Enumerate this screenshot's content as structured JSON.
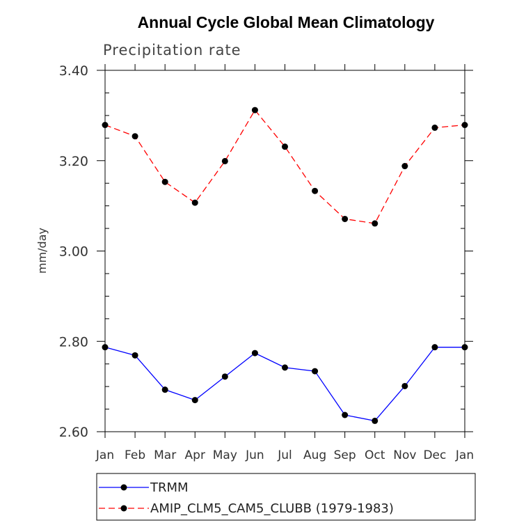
{
  "chart_data": {
    "type": "line",
    "title": "Annual Cycle Global Mean Climatology",
    "subtitle": "Precipitation rate",
    "ylabel": "mm/day",
    "xlabel": "",
    "ylim": [
      2.6,
      3.4
    ],
    "yticks": [
      "2.60",
      "2.80",
      "3.00",
      "3.20",
      "3.40"
    ],
    "yticks_values": [
      2.6,
      2.8,
      3.0,
      3.2,
      3.4
    ],
    "categories": [
      "Jan",
      "Feb",
      "Mar",
      "Apr",
      "May",
      "Jun",
      "Jul",
      "Aug",
      "Sep",
      "Oct",
      "Nov",
      "Dec",
      "Jan"
    ],
    "grid": false,
    "legend_position": "bottom",
    "series": [
      {
        "name": "TRMM",
        "color": "#0000ff",
        "style": "solid",
        "marker": "circle",
        "values": [
          2.787,
          2.769,
          2.693,
          2.67,
          2.722,
          2.774,
          2.742,
          2.734,
          2.637,
          2.624,
          2.701,
          2.787,
          2.787
        ]
      },
      {
        "name": "AMIP_CLM5_CAM5_CLUBB (1979-1983)",
        "color": "#ff0000",
        "style": "dashed",
        "marker": "circle",
        "values": [
          3.279,
          3.254,
          3.153,
          3.107,
          3.199,
          3.312,
          3.231,
          3.133,
          3.071,
          3.061,
          3.188,
          3.273,
          3.279
        ]
      }
    ]
  }
}
